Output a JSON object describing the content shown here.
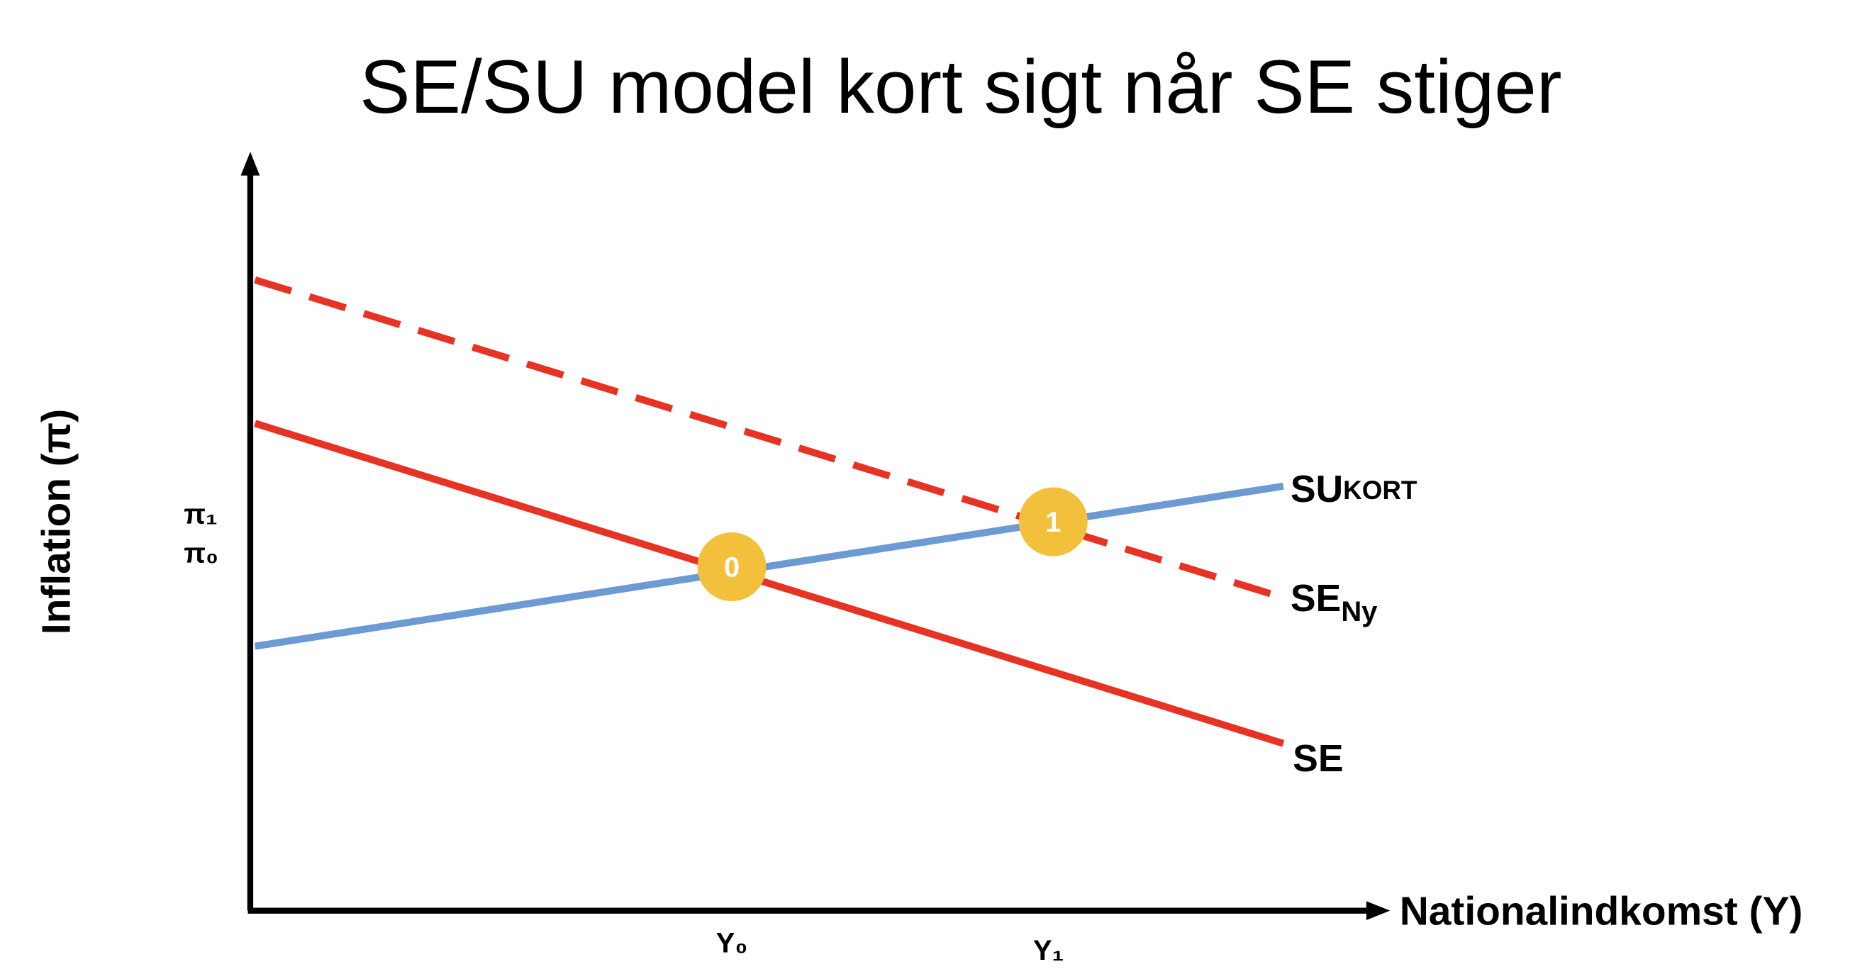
{
  "title": "SE/SU model kort sigt når SE stiger",
  "axes": {
    "y_label": "Inflation (π)",
    "x_label": "Nationalindkomst (Y)"
  },
  "y_ticks": [
    "π₁",
    "π₀"
  ],
  "x_ticks": [
    "Y₀",
    "Y₁"
  ],
  "curves": [
    {
      "label": "SU",
      "sub": "KORT"
    },
    {
      "label": "SE",
      "sub": "Ny"
    },
    {
      "label": "SE"
    }
  ],
  "points": [
    "0",
    "1"
  ]
}
